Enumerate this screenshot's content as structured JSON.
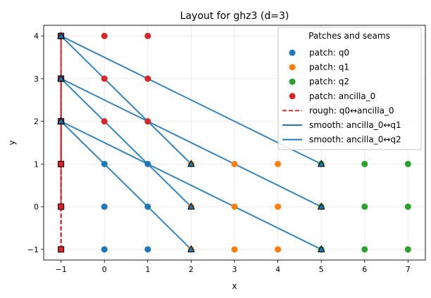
{
  "chart_data": {
    "type": "scatter",
    "title": "Layout for ghz3 (d=3)",
    "xlabel": "x",
    "ylabel": "y",
    "xlim": [
      -1.4,
      7.4
    ],
    "ylim": [
      -1.25,
      4.25
    ],
    "xticks": [
      -1,
      0,
      1,
      2,
      3,
      4,
      5,
      6,
      7
    ],
    "yticks": [
      -1,
      0,
      1,
      2,
      3,
      4
    ],
    "grid": true,
    "legend": {
      "title": "Patches and seams",
      "placement": "top-right"
    },
    "series": [
      {
        "name": "patch: q0",
        "kind": "points",
        "color": "#1f77b4",
        "points": [
          [
            -1,
            -1
          ],
          [
            0,
            -1
          ],
          [
            1,
            -1
          ],
          [
            -1,
            0
          ],
          [
            0,
            0
          ],
          [
            1,
            0
          ],
          [
            -1,
            1
          ],
          [
            0,
            1
          ],
          [
            1,
            1
          ]
        ]
      },
      {
        "name": "patch: q1",
        "kind": "points",
        "color": "#ff7f0e",
        "points": [
          [
            2,
            -1
          ],
          [
            3,
            -1
          ],
          [
            4,
            -1
          ],
          [
            2,
            0
          ],
          [
            3,
            0
          ],
          [
            4,
            0
          ],
          [
            2,
            1
          ],
          [
            3,
            1
          ],
          [
            4,
            1
          ]
        ]
      },
      {
        "name": "patch: q2",
        "kind": "points",
        "color": "#2ca02c",
        "points": [
          [
            5,
            -1
          ],
          [
            6,
            -1
          ],
          [
            7,
            -1
          ],
          [
            5,
            0
          ],
          [
            6,
            0
          ],
          [
            7,
            0
          ],
          [
            5,
            1
          ],
          [
            6,
            1
          ],
          [
            7,
            1
          ]
        ]
      },
      {
        "name": "patch: ancilla_0",
        "kind": "points",
        "color": "#d62728",
        "points": [
          [
            -1,
            2
          ],
          [
            0,
            2
          ],
          [
            1,
            2
          ],
          [
            -1,
            3
          ],
          [
            0,
            3
          ],
          [
            1,
            3
          ],
          [
            -1,
            4
          ],
          [
            0,
            4
          ],
          [
            1,
            4
          ]
        ]
      },
      {
        "name": "rough: q0↔ancilla_0",
        "kind": "seam",
        "style": "dashed",
        "color": "#d62728",
        "segments": [
          [
            [
              -1,
              -1
            ],
            [
              -1,
              4
            ]
          ],
          [
            [
              -1,
              0
            ],
            [
              -1,
              4
            ]
          ],
          [
            [
              -1,
              1
            ],
            [
              -1,
              4
            ]
          ],
          [
            [
              -1,
              -1
            ],
            [
              -1,
              3
            ]
          ],
          [
            [
              -1,
              0
            ],
            [
              -1,
              3
            ]
          ],
          [
            [
              -1,
              1
            ],
            [
              -1,
              3
            ]
          ],
          [
            [
              -1,
              -1
            ],
            [
              -1,
              2
            ]
          ],
          [
            [
              -1,
              0
            ],
            [
              -1,
              2
            ]
          ],
          [
            [
              -1,
              1
            ],
            [
              -1,
              2
            ]
          ]
        ],
        "markers": [
          [
            -1,
            -1
          ],
          [
            -1,
            0
          ],
          [
            -1,
            1
          ],
          [
            -1,
            2
          ],
          [
            -1,
            3
          ],
          [
            -1,
            4
          ]
        ],
        "marker": "square"
      },
      {
        "name": "smooth: ancilla_0↔q1",
        "kind": "seam",
        "style": "solid",
        "color": "#1f77b4",
        "segments": [
          [
            [
              -1,
              4
            ],
            [
              2,
              1
            ]
          ],
          [
            [
              -1,
              3
            ],
            [
              2,
              0
            ]
          ],
          [
            [
              -1,
              2
            ],
            [
              2,
              -1
            ]
          ]
        ],
        "markers": [
          [
            -1,
            4
          ],
          [
            -1,
            3
          ],
          [
            -1,
            2
          ],
          [
            2,
            1
          ],
          [
            2,
            0
          ],
          [
            2,
            -1
          ]
        ],
        "marker": "triangle"
      },
      {
        "name": "smooth: ancilla_0↔q2",
        "kind": "seam",
        "style": "solid",
        "color": "#1f77b4",
        "segments": [
          [
            [
              -1,
              4
            ],
            [
              5,
              1
            ]
          ],
          [
            [
              -1,
              3
            ],
            [
              5,
              0
            ]
          ],
          [
            [
              -1,
              2
            ],
            [
              5,
              -1
            ]
          ]
        ],
        "markers": [
          [
            -1,
            4
          ],
          [
            -1,
            3
          ],
          [
            -1,
            2
          ],
          [
            5,
            1
          ],
          [
            5,
            0
          ],
          [
            5,
            -1
          ]
        ],
        "marker": "triangle"
      }
    ]
  }
}
